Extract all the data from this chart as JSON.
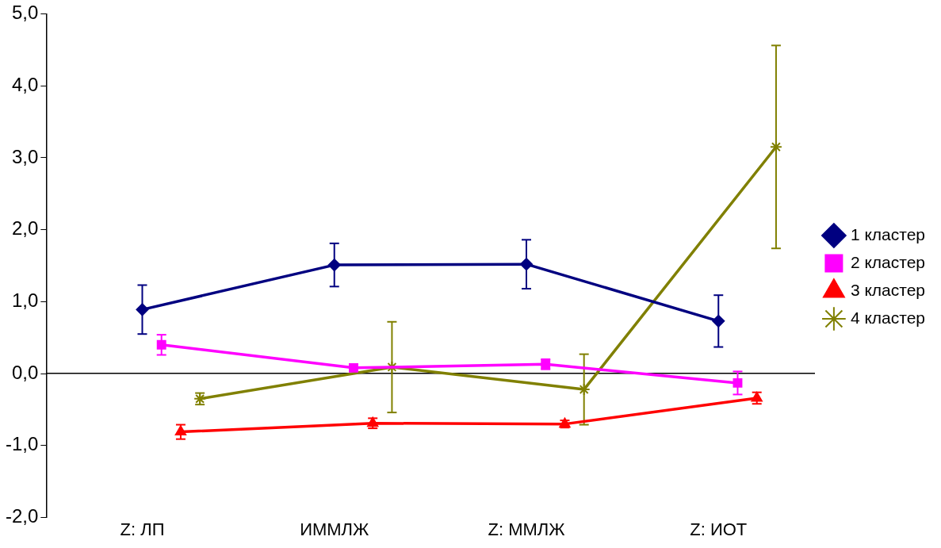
{
  "chart_data": {
    "type": "line",
    "legend": "right",
    "categories": [
      "Z: ЛП",
      "ИММЛЖ",
      "Z: ММЛЖ",
      "Z: ИОТ"
    ],
    "ylim": [
      -2,
      5
    ],
    "yticks": [
      {
        "value": -2,
        "label": "-2,0"
      },
      {
        "value": -1,
        "label": "-1,0"
      },
      {
        "value": 0,
        "label": "0,0"
      },
      {
        "value": 1,
        "label": "1,0"
      },
      {
        "value": 2,
        "label": "2,0"
      },
      {
        "value": 3,
        "label": "3,0"
      },
      {
        "value": 4,
        "label": "4,0"
      },
      {
        "value": 5,
        "label": "5,0"
      }
    ],
    "series": [
      {
        "name": "1 кластер",
        "color": "#000080",
        "marker": "diamond",
        "values": [
          0.89,
          1.51,
          1.52,
          0.73
        ],
        "errors": [
          0.34,
          0.3,
          0.34,
          0.36
        ]
      },
      {
        "name": "2 кластер",
        "color": "#ff00ff",
        "marker": "square",
        "values": [
          0.4,
          0.08,
          0.13,
          -0.13
        ],
        "errors": [
          0.14,
          0.05,
          0.07,
          0.16
        ]
      },
      {
        "name": "3 кластер",
        "color": "#ff0000",
        "marker": "triangle",
        "values": [
          -0.81,
          -0.69,
          -0.7,
          -0.34
        ],
        "errors": [
          0.1,
          0.07,
          0.05,
          0.08
        ]
      },
      {
        "name": "4 кластер",
        "color": "#808000",
        "marker": "cross",
        "values": [
          -0.35,
          0.09,
          -0.22,
          3.15
        ],
        "errors": [
          0.08,
          0.63,
          0.49,
          1.41
        ]
      }
    ]
  }
}
